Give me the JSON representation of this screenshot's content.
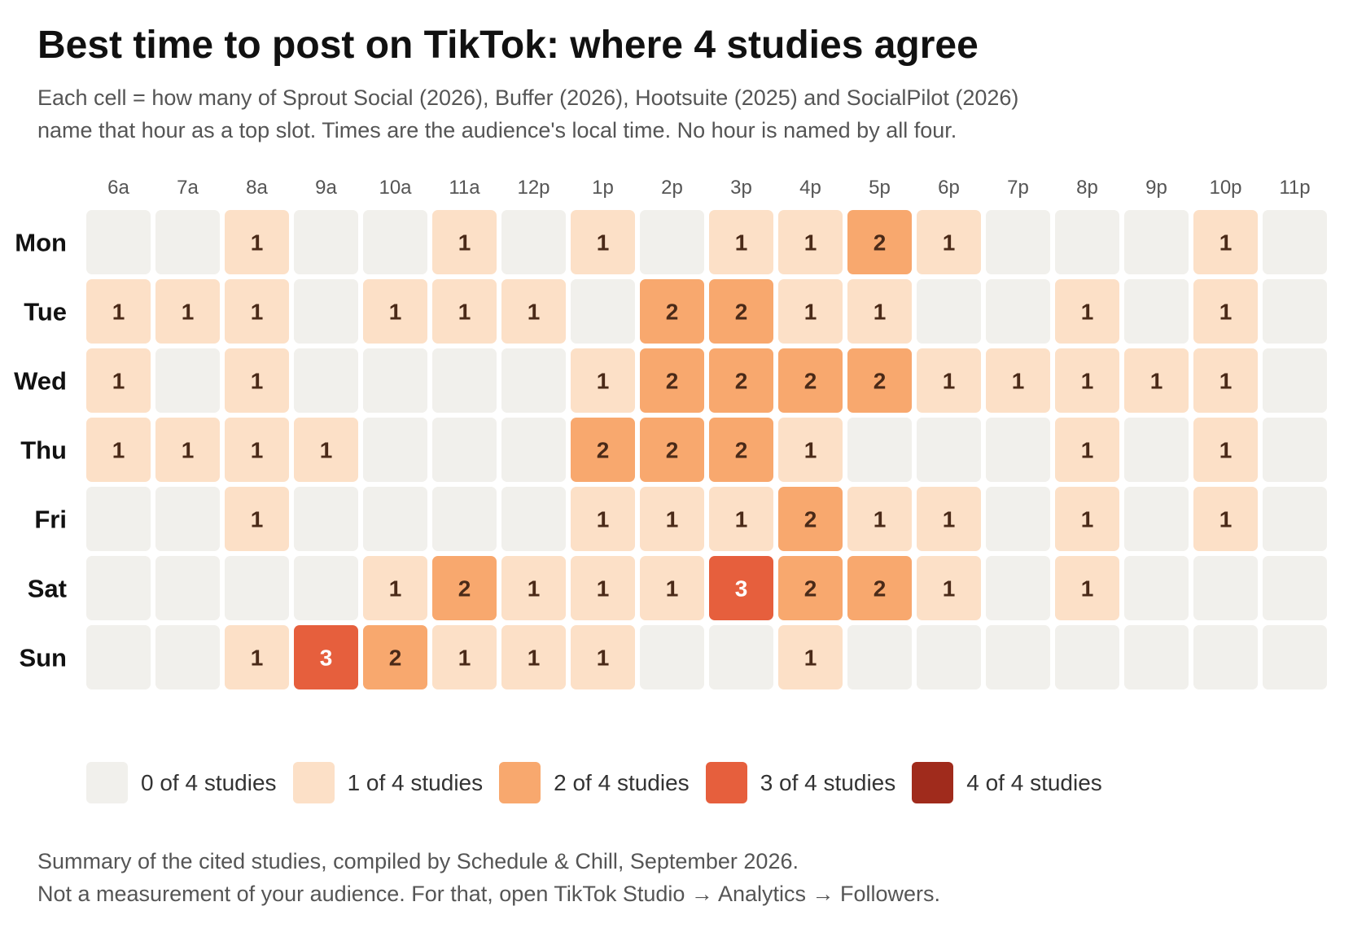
{
  "chart_data": {
    "type": "heatmap",
    "title": "Best time to post on TikTok: where 4 studies agree",
    "subtitle": [
      "Each cell = how many of Sprout Social (2026), Buffer (2026), Hootsuite (2025) and SocialPilot (2026)",
      "name that hour as a top slot. Times are the audience's local time. No hour is named by all four."
    ],
    "x": [
      "6a",
      "7a",
      "8a",
      "9a",
      "10a",
      "11a",
      "12p",
      "1p",
      "2p",
      "3p",
      "4p",
      "5p",
      "6p",
      "7p",
      "8p",
      "9p",
      "10p",
      "11p"
    ],
    "y": [
      "Mon",
      "Tue",
      "Wed",
      "Thu",
      "Fri",
      "Sat",
      "Sun"
    ],
    "values": [
      [
        0,
        0,
        1,
        0,
        0,
        1,
        0,
        1,
        0,
        1,
        1,
        2,
        1,
        0,
        0,
        0,
        1,
        0
      ],
      [
        1,
        1,
        1,
        0,
        1,
        1,
        1,
        0,
        2,
        2,
        1,
        1,
        0,
        0,
        1,
        0,
        1,
        0
      ],
      [
        1,
        0,
        1,
        0,
        0,
        0,
        0,
        1,
        2,
        2,
        2,
        2,
        1,
        1,
        1,
        1,
        1,
        0
      ],
      [
        1,
        1,
        1,
        1,
        0,
        0,
        0,
        2,
        2,
        2,
        1,
        0,
        0,
        0,
        1,
        0,
        1,
        0
      ],
      [
        0,
        0,
        1,
        0,
        0,
        0,
        0,
        1,
        1,
        1,
        2,
        1,
        1,
        0,
        1,
        0,
        1,
        0
      ],
      [
        0,
        0,
        0,
        0,
        1,
        2,
        1,
        1,
        1,
        3,
        2,
        2,
        1,
        0,
        1,
        0,
        0,
        0
      ],
      [
        0,
        0,
        1,
        3,
        2,
        1,
        1,
        1,
        0,
        0,
        1,
        0,
        0,
        0,
        0,
        0,
        0,
        0
      ]
    ],
    "value_range": [
      0,
      4
    ],
    "colors": [
      "#f1f0ec",
      "#fce0c7",
      "#f8a86e",
      "#e65f3d",
      "#a02b1c"
    ],
    "label_colors": [
      "#f1f0ec",
      "#4a2a18",
      "#4a2a18",
      "#ffffff",
      "#ffffff"
    ],
    "legend": [
      "0 of 4 studies",
      "1 of 4 studies",
      "2 of 4 studies",
      "3 of 4 studies",
      "4 of 4 studies"
    ],
    "legend_position": "bottom",
    "grid": false
  },
  "footer": {
    "line1": "Summary of the cited studies, compiled by Schedule & Chill, September 2026.",
    "line2": "Not a measurement of your audience. For that, open TikTok Studio → Analytics → Followers."
  }
}
